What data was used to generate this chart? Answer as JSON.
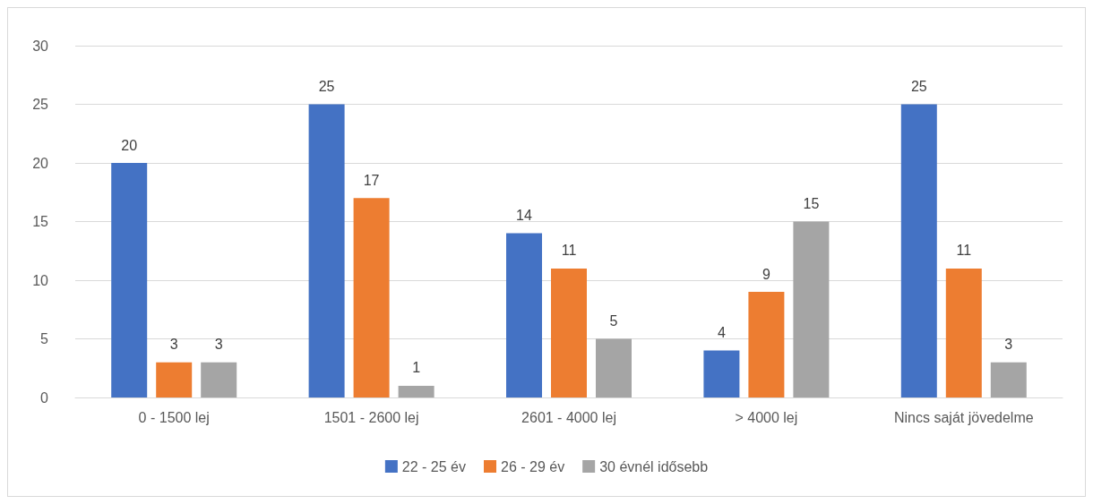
{
  "chart_data": {
    "type": "bar",
    "categories": [
      "0 - 1500 lej",
      "1501 - 2600 lej",
      "2601 - 4000 lej",
      "> 4000 lej",
      "Nincs saját jövedelme"
    ],
    "series": [
      {
        "name": "22 - 25 év",
        "color": "#4472c4",
        "values": [
          20,
          25,
          14,
          4,
          25
        ]
      },
      {
        "name": "26 - 29 év",
        "color": "#ed7d31",
        "values": [
          3,
          17,
          11,
          9,
          11
        ]
      },
      {
        "name": "30 évnél idősebb",
        "color": "#a5a5a5",
        "values": [
          3,
          1,
          5,
          15,
          3
        ]
      }
    ],
    "ylim": [
      0,
      30
    ],
    "yticks": [
      0,
      5,
      10,
      15,
      20,
      25,
      30
    ],
    "grid": "y",
    "legend": "bottom",
    "data_labels": true
  }
}
